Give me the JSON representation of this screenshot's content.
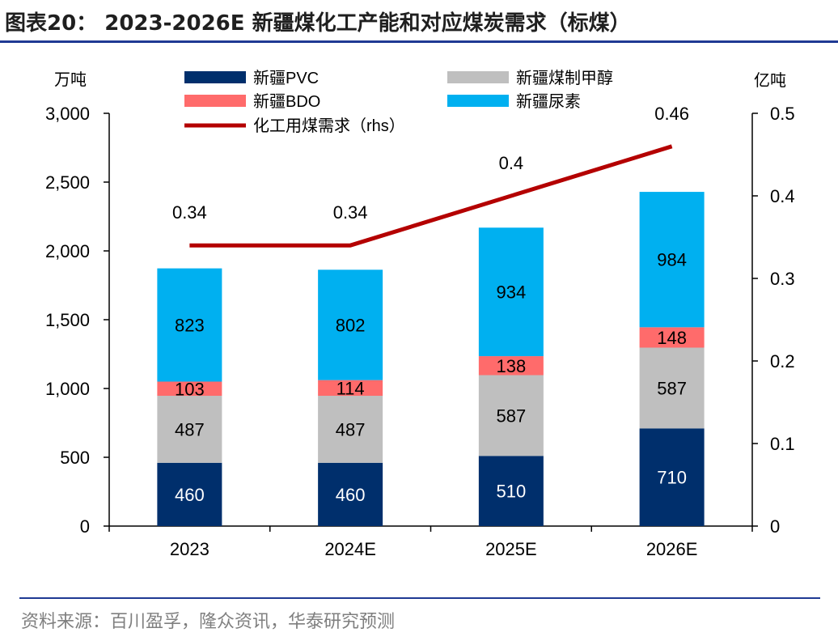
{
  "title": "图表20： 2023-2026E 新疆煤化工产能和对应煤炭需求（标煤）",
  "source": "资料来源：百川盈孚，隆众资讯，华泰研究预测",
  "colors": {
    "pvc": "#002f6c",
    "methanol": "#bfbfbf",
    "bdo": "#ff6b6b",
    "urea": "#00b0f0",
    "demand_line": "#b40000",
    "rule": "#1f3a93"
  },
  "chart_data": {
    "type": "bar",
    "stacked": true,
    "categories": [
      "2023",
      "2024E",
      "2025E",
      "2026E"
    ],
    "series": [
      {
        "name": "新疆PVC",
        "values": [
          460,
          460,
          510,
          710
        ],
        "color_key": "pvc"
      },
      {
        "name": "新疆煤制甲醇",
        "values": [
          487,
          487,
          587,
          587
        ],
        "color_key": "methanol"
      },
      {
        "name": "新疆BDO",
        "values": [
          103,
          114,
          138,
          148
        ],
        "color_key": "bdo"
      },
      {
        "name": "新疆尿素",
        "values": [
          823,
          802,
          934,
          984
        ],
        "color_key": "urea"
      }
    ],
    "line_series": {
      "name": "化工用煤需求（rhs）",
      "values": [
        0.34,
        0.34,
        0.4,
        0.46
      ],
      "axis": "right",
      "color_key": "demand_line"
    },
    "ylabel": "万吨",
    "ylabel_right": "亿吨",
    "ylim": [
      0,
      3000
    ],
    "ylim_right": [
      0,
      0.5
    ],
    "yticks": [
      "0",
      "500",
      "1,000",
      "1,500",
      "2,000",
      "2,500",
      "3,000"
    ],
    "yticks_right": [
      "0",
      "0.1",
      "0.2",
      "0.3",
      "0.4",
      "0.5"
    ],
    "legend_position": "top",
    "grid": false
  }
}
